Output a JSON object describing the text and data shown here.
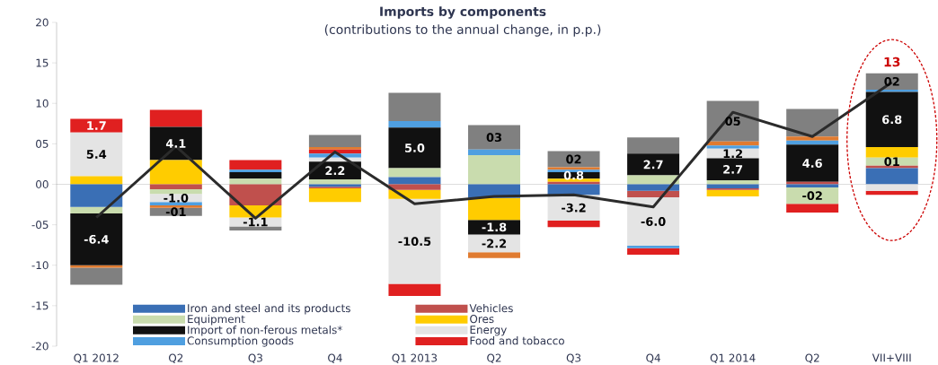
{
  "chart_data": {
    "type": "bar",
    "stacked": true,
    "title": "Imports by components",
    "subtitle": "(contributions to the annual change, in p.p.)",
    "categories": [
      "Q1 2012",
      "Q2",
      "Q3",
      "Q4",
      "Q1 2013",
      "Q2",
      "Q3",
      "Q4",
      "Q1 2014",
      "Q2",
      "VII+VIII"
    ],
    "series": [
      {
        "name": "Iron and steel and its products",
        "color": "#3a6fb5",
        "values": [
          -2.8,
          0,
          0,
          -0.3,
          0.9,
          -1.7,
          -1.3,
          -0.8,
          -0.5,
          -0.4,
          2.0
        ]
      },
      {
        "name": "Vehicles",
        "color": "#c0504d",
        "values": [
          0,
          -0.6,
          -2.6,
          -0.2,
          -0.7,
          0,
          0.3,
          -0.8,
          -0.2,
          0.3,
          0.3
        ]
      },
      {
        "name": "Equipment",
        "color": "#c9dcae",
        "values": [
          -0.8,
          -0.6,
          0.7,
          0.6,
          1.1,
          3.6,
          0,
          1.1,
          0.5,
          -2,
          1
        ],
        "value_labels": [
          null,
          null,
          null,
          null,
          null,
          null,
          null,
          null,
          null,
          "-02",
          "01"
        ]
      },
      {
        "name": "Ores",
        "color": "#ffcc00",
        "values": [
          1.0,
          3.0,
          -1.5,
          -1.7,
          -1.1,
          -2.7,
          0.4,
          0,
          -0.8,
          0,
          1.3
        ]
      },
      {
        "name": "Import of non-ferous metals*",
        "color": "#111111",
        "values": [
          -6.4,
          4.1,
          0.8,
          2.2,
          5.0,
          -1.8,
          0.8,
          2.7,
          2.7,
          4.6,
          6.8
        ],
        "value_labels": [
          "-6.4",
          "4.1",
          null,
          "2.2",
          "5.0",
          "-1.8",
          "0.8",
          "2.7",
          "2.7",
          "4.6",
          "6.8"
        ]
      },
      {
        "name": "Energy",
        "color": "#e4e4e4",
        "values": [
          5.4,
          -1.0,
          -1.1,
          0.5,
          -10.5,
          -2.2,
          -3.2,
          -6.0,
          1.2,
          0,
          -0.8
        ],
        "value_labels": [
          "5.4",
          "-1.0",
          "-1.1",
          null,
          "-10.5",
          "-2.2",
          "-3.2",
          "-6.0",
          "1.2",
          null,
          null
        ]
      },
      {
        "name": "Consumption goods",
        "color": "#4f9fe0",
        "values": [
          0,
          -0.4,
          0.3,
          0.5,
          0.8,
          0.7,
          0.3,
          -0.3,
          0.4,
          0.5,
          0.3
        ]
      },
      {
        "name": "Food and tobacco",
        "color": "#e02020",
        "values": [
          1.7,
          2.1,
          1.2,
          0.5,
          -1.5,
          0,
          -0.8,
          -0.8,
          0,
          -1.1,
          -0.5
        ],
        "value_labels": [
          "1.7",
          null,
          null,
          null,
          null,
          null,
          null,
          null,
          null,
          null,
          null
        ]
      },
      {
        "color": "#e07b30",
        "values": [
          -0.3,
          -0.3,
          0,
          0.3,
          0,
          -0.7,
          0.3,
          0,
          0.5,
          0.5,
          0
        ]
      },
      {
        "color": "#808080",
        "values": [
          -2.1,
          -1,
          -0.5,
          1.5,
          3.5,
          3,
          2,
          2.0,
          5,
          3.4,
          2
        ],
        "value_labels": [
          null,
          "-01",
          null,
          null,
          null,
          "03",
          "02",
          null,
          "05",
          null,
          "02"
        ]
      },
      {
        "type": "line",
        "color": "#2b2b2b",
        "values": [
          -4.1,
          4.7,
          -4.2,
          4.0,
          -2.4,
          -1.5,
          -1.3,
          -2.8,
          8.9,
          5.9,
          12.6
        ]
      }
    ],
    "ylim": [
      -20,
      20
    ],
    "yticks": [
      -20,
      -15,
      -10,
      {
        "value": -5,
        "label": "-05"
      },
      {
        "value": 0,
        "label": "00"
      },
      {
        "value": 5,
        "label": "05"
      },
      10,
      15,
      20
    ],
    "legend": "bottom",
    "annotations": [
      {
        "text": "13",
        "x": "VII+VIII",
        "y": 13
      }
    ]
  }
}
